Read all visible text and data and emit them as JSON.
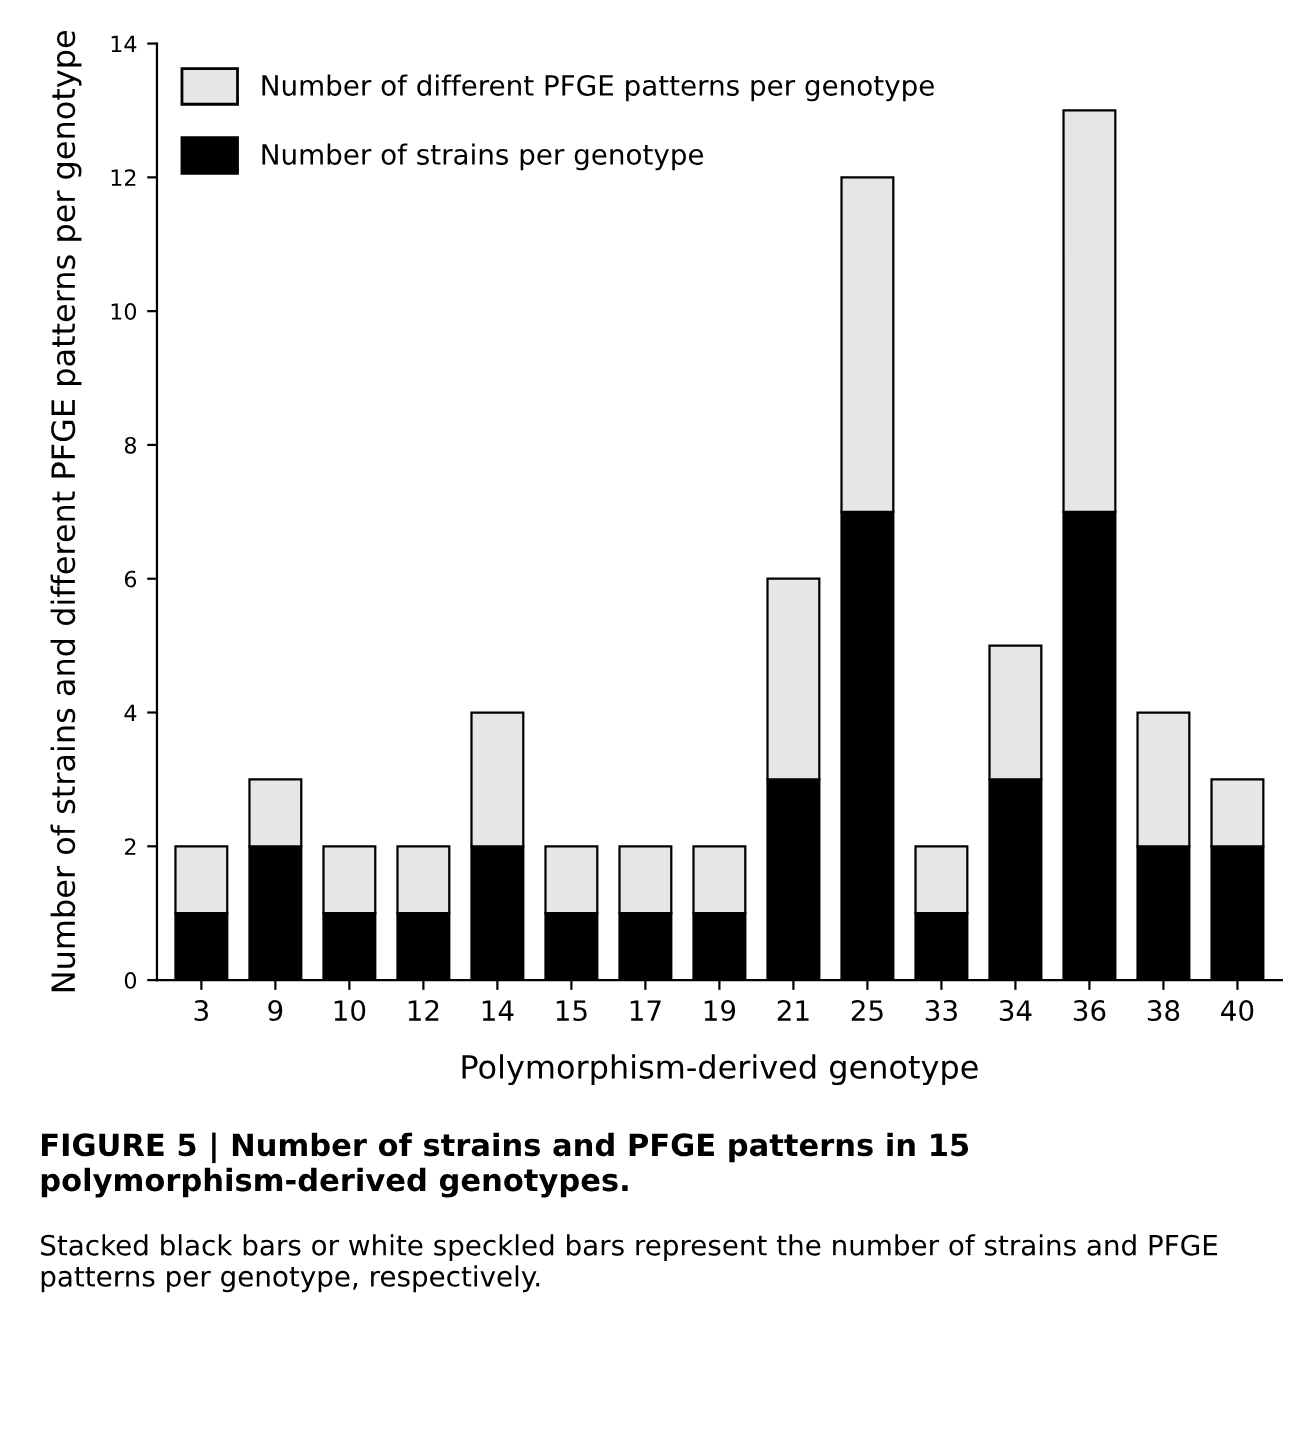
{
  "chart_data": {
    "type": "bar",
    "stacked": true,
    "xlabel": "Polymorphism-derived genotype",
    "ylabel": "Number of strains and different PFGE patterns per genotype",
    "categories": [
      "3",
      "9",
      "10",
      "12",
      "14",
      "15",
      "17",
      "19",
      "21",
      "25",
      "33",
      "34",
      "36",
      "38",
      "40"
    ],
    "series": [
      {
        "name": "Number of strains per genotype",
        "color": "#000000",
        "values": [
          1,
          2,
          1,
          1,
          2,
          1,
          1,
          1,
          3,
          7,
          1,
          3,
          7,
          2,
          2
        ]
      },
      {
        "name": "Number of different PFGE patterns per genotype",
        "color": "#e6e6e6",
        "values": [
          1,
          1,
          1,
          1,
          2,
          1,
          1,
          1,
          3,
          5,
          1,
          2,
          6,
          2,
          1
        ]
      }
    ],
    "ylim": [
      0,
      14
    ],
    "yticks": [
      0,
      2,
      4,
      6,
      8,
      10,
      12,
      14
    ],
    "grid": false,
    "legend": "top left",
    "title": "FIGURE 5 | Number of strains and PFGE patterns in 15 polymorphism-derived genotypes.",
    "annotations": [
      "Stacked black bars or white speckled bars represent the number of strains and PFGE patterns per genotype, respectively."
    ]
  }
}
